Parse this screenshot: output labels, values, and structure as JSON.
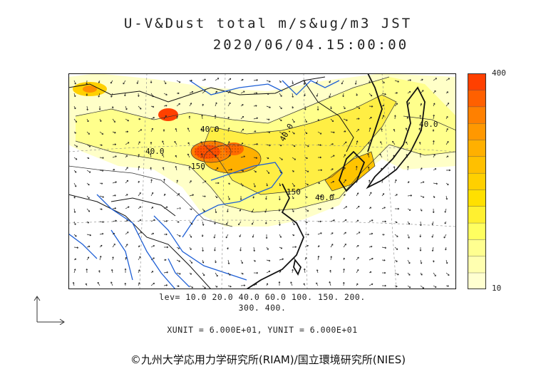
{
  "title": {
    "line1": "U-V&Dust total m/s&ug/m3 JST",
    "line2": "2020/06/04.15:00:00"
  },
  "colorbar": {
    "max_label": "400",
    "min_label": "10",
    "colors": [
      "#ffffd0",
      "#ffffb0",
      "#ffff90",
      "#ffff60",
      "#fff030",
      "#ffe000",
      "#ffd000",
      "#ffc000",
      "#ffb000",
      "#ff9800",
      "#ff8000",
      "#ff6000",
      "#ff4000"
    ]
  },
  "contour_labels": [
    "40.0",
    "40.0",
    "150",
    "40.0",
    "150",
    "40.0",
    "40.0"
  ],
  "levels": {
    "line1": "lev= 10.0 20.0 40.0 60.0 100. 150. 200.",
    "line2": "300. 400."
  },
  "units_text": "XUNIT = 6.000E+01, YUNIT = 6.000E+01",
  "copyright": "©九州大学応用力学研究所(RIAM)/国立環境研究所(NIES)",
  "icons": [
    "reference-vector-arrow-icon"
  ]
}
